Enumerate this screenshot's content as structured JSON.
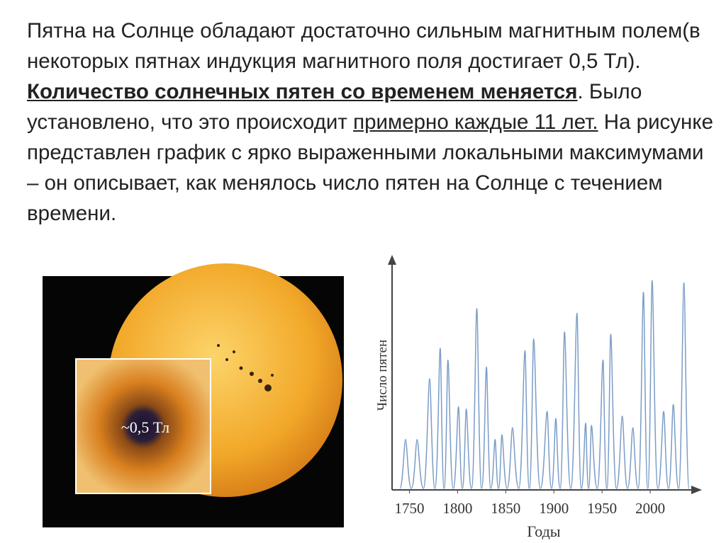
{
  "paragraph": [
    {
      "text": "Пятна на Солнце обладают достаточно сильным магнитным полем(в некоторых пятнах индукция магнитного поля достигает 0,5 Тл). "
    },
    {
      "text": "Количество солнечных пятен со временем меняется",
      "style": "bold-underline"
    },
    {
      "text": ". Было установлено, что это происходит "
    },
    {
      "text": "примерно каждые 11 лет.",
      "style": "underline"
    },
    {
      "text": " На рисунке представлен график с ярко выраженными локальными максимумами – он описывает, как менялось число пятен на Солнце с течением времени."
    }
  ],
  "image": {
    "label": "~0,5 Тл"
  },
  "chart_data": {
    "type": "line",
    "y_label": "Число пятен",
    "x_label": "Годы",
    "x": [
      1746,
      1758,
      1771,
      1782,
      1790,
      1801,
      1809,
      1820,
      1830,
      1839,
      1846,
      1857,
      1870,
      1879,
      1893,
      1902,
      1911,
      1924,
      1933,
      1939,
      1951,
      1959,
      1971,
      1982,
      1993,
      2002,
      2014,
      2024,
      2035
    ],
    "series": [
      {
        "color": "#7a9cc6",
        "values": [
          21,
          21,
          47,
          60,
          55,
          35,
          34,
          77,
          52,
          21,
          23,
          26,
          59,
          64,
          33,
          30,
          67,
          75,
          28,
          27,
          55,
          66,
          31,
          26,
          84,
          89,
          33,
          36,
          88
        ]
      }
    ],
    "xlim": [
      1732,
      2050
    ],
    "ylim": [
      0,
      100
    ],
    "xticks": [
      1750,
      1800,
      1850,
      1900,
      1950,
      2000
    ]
  }
}
